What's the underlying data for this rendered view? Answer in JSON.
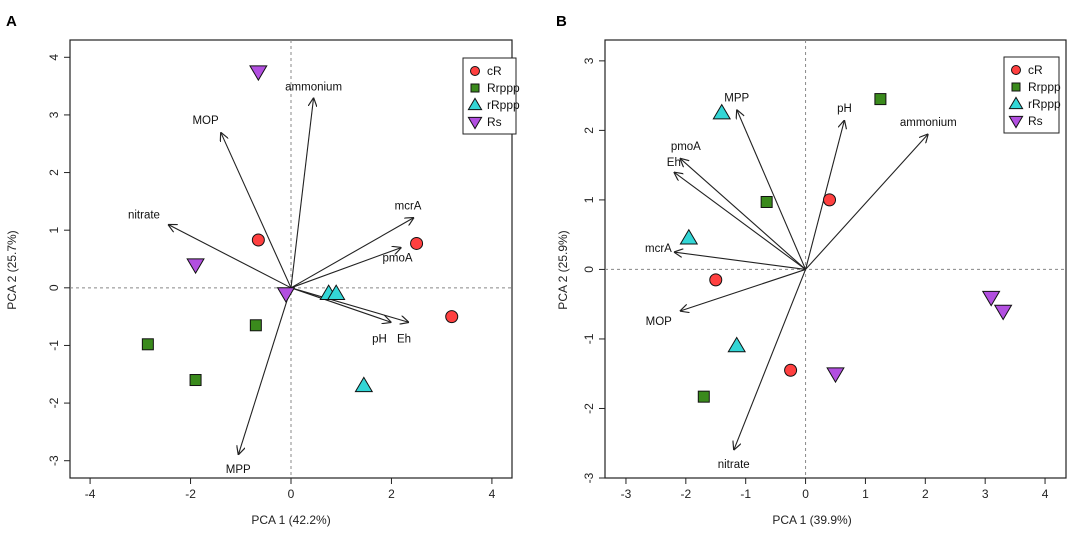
{
  "chart_data": [
    {
      "type": "scatter",
      "panel_label": "A",
      "xlabel": "PCA 1 (42.2%)",
      "ylabel": "PCA 2 (25.7%)",
      "xlim": [
        -4.4,
        4.4
      ],
      "ylim": [
        -3.3,
        4.3
      ],
      "xticks": [
        "-4",
        "-2",
        "0",
        "2",
        "4"
      ],
      "yticks": [
        "-3",
        "-2",
        "-1",
        "0",
        "1",
        "2",
        "3",
        "4"
      ],
      "legend_position": "top-right",
      "groups": [
        {
          "name": "cR",
          "shape": "circle",
          "color": "#ff4040",
          "points": [
            [
              -0.65,
              0.83
            ],
            [
              2.5,
              0.77
            ],
            [
              3.2,
              -0.5
            ]
          ]
        },
        {
          "name": "Rrppp",
          "shape": "square",
          "color": "#3a8a1c",
          "points": [
            [
              -2.85,
              -0.98
            ],
            [
              -1.9,
              -1.6
            ],
            [
              -0.7,
              -0.65
            ]
          ]
        },
        {
          "name": "rRppp",
          "shape": "triangle-up",
          "color": "#33d6d6",
          "points": [
            [
              0.75,
              -0.1
            ],
            [
              0.9,
              -0.1
            ],
            [
              1.45,
              -1.7
            ]
          ]
        },
        {
          "name": "Rs",
          "shape": "triangle-down",
          "color": "#b24fe0",
          "points": [
            [
              -0.65,
              3.75
            ],
            [
              -1.9,
              0.4
            ],
            [
              -0.1,
              -0.1
            ]
          ]
        }
      ],
      "vectors": [
        {
          "label": "ammonium",
          "end": [
            0.45,
            3.3
          ]
        },
        {
          "label": "MOP",
          "end": [
            -1.4,
            2.7
          ]
        },
        {
          "label": "nitrate",
          "end": [
            -2.45,
            1.1
          ]
        },
        {
          "label": "mcrA",
          "end": [
            2.45,
            1.22
          ]
        },
        {
          "label": "pmoA",
          "end": [
            2.2,
            0.7
          ]
        },
        {
          "label": "pH",
          "end": [
            2.0,
            -0.6
          ]
        },
        {
          "label": "Eh",
          "end": [
            2.35,
            -0.6
          ]
        },
        {
          "label": "MPP",
          "end": [
            -1.05,
            -2.9
          ]
        }
      ]
    },
    {
      "type": "scatter",
      "panel_label": "B",
      "xlabel": "PCA 1 (39.9%)",
      "ylabel": "PCA 2 (25.9%)",
      "xlim": [
        -3.35,
        4.35
      ],
      "ylim": [
        -3.0,
        3.3
      ],
      "xticks": [
        "-3",
        "-2",
        "-1",
        "0",
        "1",
        "2",
        "3",
        "4"
      ],
      "yticks": [
        "-3",
        "-2",
        "-1",
        "0",
        "1",
        "2",
        "3"
      ],
      "legend_position": "top-right",
      "groups": [
        {
          "name": "cR",
          "shape": "circle",
          "color": "#ff4040",
          "points": [
            [
              0.4,
              1.0
            ],
            [
              -1.5,
              -0.15
            ],
            [
              -0.25,
              -1.45
            ]
          ]
        },
        {
          "name": "Rrppp",
          "shape": "square",
          "color": "#3a8a1c",
          "points": [
            [
              1.25,
              2.45
            ],
            [
              -0.65,
              0.97
            ],
            [
              -1.7,
              -1.83
            ]
          ]
        },
        {
          "name": "rRppp",
          "shape": "triangle-up",
          "color": "#33d6d6",
          "points": [
            [
              -1.4,
              2.25
            ],
            [
              -1.95,
              0.45
            ],
            [
              -1.15,
              -1.1
            ]
          ]
        },
        {
          "name": "Rs",
          "shape": "triangle-down",
          "color": "#b24fe0",
          "points": [
            [
              3.1,
              -0.4
            ],
            [
              3.3,
              -0.6
            ],
            [
              0.5,
              -1.5
            ]
          ]
        }
      ],
      "vectors": [
        {
          "label": "MPP",
          "end": [
            -1.15,
            2.3
          ]
        },
        {
          "label": "pH",
          "end": [
            0.65,
            2.15
          ]
        },
        {
          "label": "ammonium",
          "end": [
            2.05,
            1.95
          ]
        },
        {
          "label": "pmoA",
          "end": [
            -2.1,
            1.6
          ]
        },
        {
          "label": "Eh",
          "end": [
            -2.2,
            1.4
          ]
        },
        {
          "label": "mcrA",
          "end": [
            -2.2,
            0.25
          ]
        },
        {
          "label": "MOP",
          "end": [
            -2.1,
            -0.6
          ]
        },
        {
          "label": "nitrate",
          "end": [
            -1.2,
            -2.6
          ]
        }
      ]
    }
  ]
}
